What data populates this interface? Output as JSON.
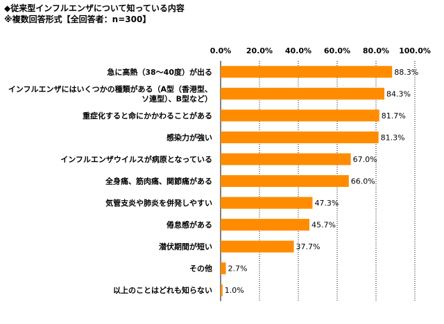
{
  "header": {
    "title": "◆従来型インフルエンザについて知っている内容",
    "subtitle": "※複数回答形式【全回答者：n=300】"
  },
  "chart_data": {
    "type": "bar",
    "orientation": "horizontal",
    "bar_color": "#FF8C00",
    "xlim": [
      0,
      100
    ],
    "x_ticks": [
      "0.0%",
      "20.0%",
      "40.0%",
      "60.0%",
      "80.0%",
      "100.0%"
    ],
    "categories": [
      [
        "急に高熱（38～40度）が出る"
      ],
      [
        "インフルエンザにはいくつかの種類がある（A型（香港型、",
        "ソ連型）、B型など）"
      ],
      [
        "重症化すると命にかかわることがある"
      ],
      [
        "感染力が強い"
      ],
      [
        "インフルエンザウイルスが病原となっている"
      ],
      [
        "全身痛、筋肉痛、関節痛がある"
      ],
      [
        "気管支炎や肺炎を併発しやすい"
      ],
      [
        "倦怠感がある"
      ],
      [
        "潜伏期間が短い"
      ],
      [
        "その他"
      ],
      [
        "以上のことはどれも知らない"
      ]
    ],
    "values": [
      88.3,
      84.3,
      81.7,
      81.3,
      67.0,
      66.0,
      47.3,
      45.7,
      37.7,
      2.7,
      1.0
    ],
    "value_labels": [
      "88.3%",
      "84.3%",
      "81.7%",
      "81.3%",
      "67.0%",
      "66.0%",
      "47.3%",
      "45.7%",
      "37.7%",
      "2.7%",
      "1.0%"
    ],
    "grid": true
  }
}
